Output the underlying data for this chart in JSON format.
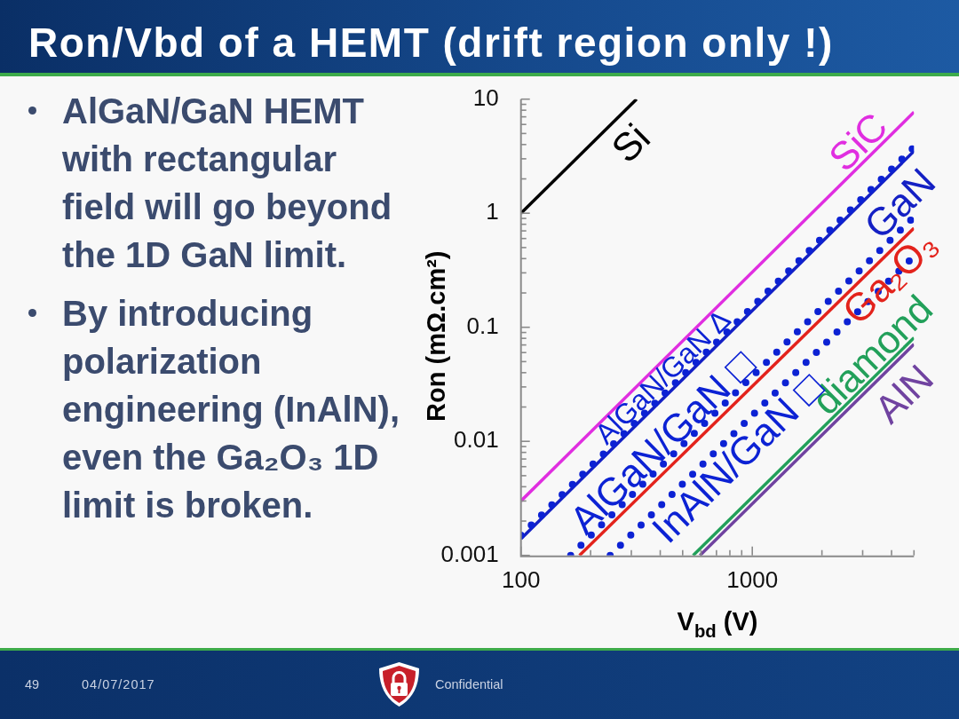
{
  "chart_data": {
    "type": "line",
    "title": "Ron/Vbd of a HEMT (drift region only !)",
    "xlabel": "V$_{bd}$ (V)",
    "ylabel": "Ron (mΩ.cm²)",
    "log": "xy",
    "xlim": [
      100,
      5000
    ],
    "ylim": [
      0.001,
      10
    ],
    "xticks": [
      100,
      {
        "value": 200,
        "label": null
      },
      {
        "value": 300,
        "label": null
      },
      {
        "value": 400,
        "label": null
      },
      {
        "value": 500,
        "label": null
      },
      {
        "value": 600,
        "label": null
      },
      {
        "value": 700,
        "label": null
      },
      {
        "value": 800,
        "label": null
      },
      {
        "value": 900,
        "label": null
      },
      1000,
      {
        "value": 2000,
        "label": null
      },
      {
        "value": 3000,
        "label": null
      },
      {
        "value": 4000,
        "label": null
      },
      {
        "value": 5000,
        "label": null
      }
    ],
    "yticks": [
      0.001,
      {
        "value": 0.002,
        "label": null
      },
      {
        "value": 0.003,
        "label": null
      },
      {
        "value": 0.004,
        "label": null
      },
      {
        "value": 0.005,
        "label": null
      },
      {
        "value": 0.006,
        "label": null
      },
      {
        "value": 0.007,
        "label": null
      },
      {
        "value": 0.008,
        "label": null
      },
      {
        "value": 0.009,
        "label": null
      },
      0.01,
      {
        "value": 0.02,
        "label": null
      },
      {
        "value": 0.03,
        "label": null
      },
      {
        "value": 0.04,
        "label": null
      },
      {
        "value": 0.05,
        "label": null
      },
      {
        "value": 0.06,
        "label": null
      },
      {
        "value": 0.07,
        "label": null
      },
      {
        "value": 0.08,
        "label": null
      },
      {
        "value": 0.09,
        "label": null
      },
      0.1,
      {
        "value": 0.2,
        "label": null
      },
      {
        "value": 0.3,
        "label": null
      },
      {
        "value": 0.4,
        "label": null
      },
      {
        "value": 0.5,
        "label": null
      },
      {
        "value": 0.6,
        "label": null
      },
      {
        "value": 0.7,
        "label": null
      },
      {
        "value": 0.8,
        "label": null
      },
      {
        "value": 0.9,
        "label": null
      },
      1,
      {
        "value": 2,
        "label": null
      },
      {
        "value": 3,
        "label": null
      },
      {
        "value": 4,
        "label": null
      },
      {
        "value": 5,
        "label": null
      },
      {
        "value": 6,
        "label": null
      },
      {
        "value": 7,
        "label": null
      },
      {
        "value": 8,
        "label": null
      },
      {
        "value": 9,
        "label": null
      },
      10
    ],
    "series": [
      {
        "name": "Si",
        "color": "#000000",
        "x": [
          100,
          316
        ],
        "values": [
          1,
          10
        ]
      },
      {
        "name": "SiC",
        "color": "#e02ee0",
        "x": [
          100,
          5000
        ],
        "values": [
          0.003,
          7.7
        ]
      },
      {
        "name": "GaN",
        "color": "#1420c4",
        "x": [
          100,
          5000
        ],
        "values": [
          0.0014,
          3.5
        ]
      },
      {
        "name": "Ga₂O₃",
        "color": "#e3231c",
        "x": [
          179,
          5000
        ],
        "values": [
          0.001,
          0.74
        ]
      },
      {
        "name": "diamond",
        "color": "#22a05a",
        "x": [
          555,
          5000
        ],
        "values": [
          0.001,
          0.081
        ]
      },
      {
        "name": "AlN",
        "color": "#7043a0",
        "x": [
          594,
          5000
        ],
        "values": [
          0.001,
          0.071
        ]
      },
      {
        "name": "AlGaN/GaN Δ",
        "color": "#0c22d4",
        "line_style": "dotted",
        "x": [
          100,
          5000
        ],
        "values": [
          0.0015,
          3.8
        ]
      },
      {
        "name": "AlGaN/GaN □",
        "color": "#0c22d4",
        "line_style": "dotted",
        "x": [
          164,
          5000
        ],
        "values": [
          0.001,
          0.93
        ]
      },
      {
        "name": "InAlN/GaN □",
        "color": "#0c22d4",
        "line_style": "dotted",
        "x": [
          243,
          5000
        ],
        "values": [
          0.001,
          0.42
        ]
      }
    ],
    "annotations": [
      "AlGaN/GaN HEMT with rectangular field will go beyond the 1D GaN limit.",
      "By introducing polarization engineering (InAlN), even the Ga₂O₃ 1D limit is broken.",
      "49",
      "04/07/2017",
      "Confidential"
    ]
  }
}
